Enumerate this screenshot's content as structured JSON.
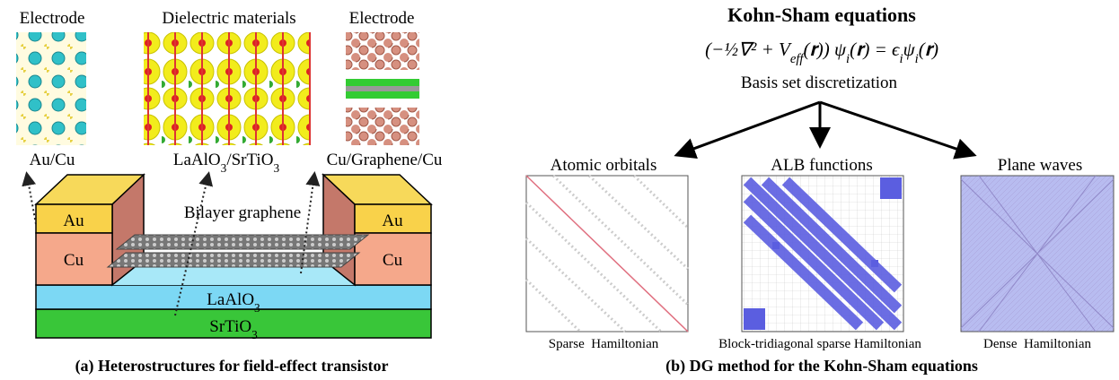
{
  "panel_a": {
    "labels": {
      "electrode_left": "Electrode",
      "dielectric": "Dielectric materials",
      "electrode_right": "Electrode"
    },
    "materials": {
      "au_cu": "Au/Cu",
      "dielectric": [
        {
          "text": "LaAlO",
          "sub": "3"
        },
        {
          "text": "/SrTiO",
          "sub": "3"
        }
      ],
      "graphene": "Cu/Graphene/Cu"
    },
    "device": {
      "au_left": "Au",
      "au_right": "Au",
      "cu_left": "Cu",
      "cu_right": "Cu",
      "bilayer": "Bilayer graphene",
      "laalo3": [
        {
          "text": "LaAlO",
          "sub": "3"
        }
      ],
      "srtio3": [
        {
          "text": "SrTiO",
          "sub": "3"
        }
      ]
    },
    "caption": "(a) Heterostructures for field-effect transistor"
  },
  "panel_b": {
    "title": "Kohn-Sham equations",
    "equation": [
      {
        "text": "(−½∇² + V",
        "sub": "eff"
      },
      {
        "text": "(𝐫)) ψ",
        "sub": "i"
      },
      {
        "text": "(𝐫) = ϵ",
        "sub": "i"
      },
      {
        "text": "ψ",
        "sub": "i"
      },
      {
        "text": "(𝐫)"
      }
    ],
    "subtitle": "Basis set discretization",
    "methods": [
      {
        "name": "Atomic orbitals",
        "matrix": "Sparse  Hamiltonian"
      },
      {
        "name": "ALB functions",
        "matrix": "Block-tridiagonal sparse Hamiltonian"
      },
      {
        "name": "Plane waves",
        "matrix": "Dense  Hamiltonian"
      }
    ],
    "caption": "(b) DG method for the Kohn-Sham equations"
  }
}
